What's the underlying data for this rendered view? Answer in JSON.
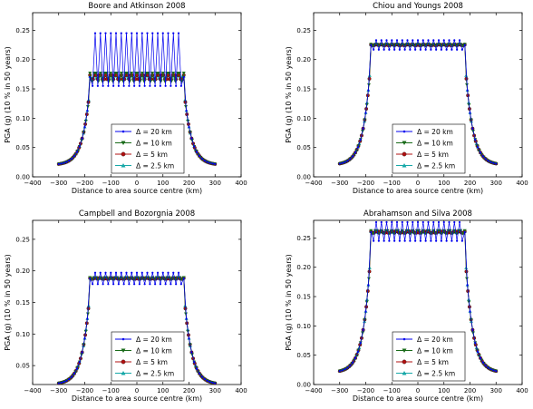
{
  "legend_labels": [
    "Δ = 20 km",
    "Δ = 10 km",
    "Δ = 5 km",
    "Δ = 2.5 km"
  ],
  "series_colors": [
    "#0000ee",
    "#1a6b1a",
    "#b01010",
    "#17a8a8"
  ],
  "series_markers": [
    "dot",
    "triangle-down",
    "circle",
    "triangle-up"
  ],
  "chart_data": [
    {
      "type": "line",
      "title": "Boore and Atkinson 2008",
      "xlabel": "Distance to area source centre (km)",
      "ylabel": "PGA (g) (10 % in 50 years)",
      "xlim": [
        -400,
        400
      ],
      "ylim": [
        0,
        0.28
      ],
      "xticks": [
        "−400",
        "−300",
        "−200",
        "−100",
        "0",
        "100",
        "200",
        "300",
        "400"
      ],
      "yticks": [
        "0.00",
        "0.05",
        "0.10",
        "0.15",
        "0.20",
        "0.25"
      ],
      "plateau": 0.17,
      "osc_high": 0.245,
      "osc_low": 0.155,
      "legend_position": "lower-center",
      "grid": false
    },
    {
      "type": "line",
      "title": "Chiou and Youngs 2008",
      "xlabel": "Distance to area source centre (km)",
      "ylabel": "PGA (g) (10 % in 50 years)",
      "xlim": [
        -400,
        400
      ],
      "ylim": [
        0,
        0.28
      ],
      "xticks": [
        "−400",
        "−300",
        "−200",
        "−100",
        "0",
        "100",
        "200",
        "300",
        "400"
      ],
      "yticks": [
        "0.00",
        "0.05",
        "0.10",
        "0.15",
        "0.20",
        "0.25"
      ],
      "plateau": 0.225,
      "osc_high": 0.233,
      "osc_low": 0.217,
      "legend_position": "lower-center",
      "grid": false
    },
    {
      "type": "line",
      "title": "Campbell and Bozorgnia 2008",
      "xlabel": "Distance to area source centre (km)",
      "ylabel": "PGA (g) (10 % in 50 years)",
      "xlim": [
        -400,
        400
      ],
      "ylim": [
        0.02,
        0.28
      ],
      "xticks": [
        "−400",
        "−300",
        "−200",
        "−100",
        "0",
        "100",
        "200",
        "300",
        "400"
      ],
      "yticks": [
        "0.05",
        "0.10",
        "0.15",
        "0.20",
        "0.25"
      ],
      "plateau": 0.188,
      "osc_high": 0.197,
      "osc_low": 0.179,
      "legend_position": "lower-center",
      "grid": false
    },
    {
      "type": "line",
      "title": "Abrahamson and Silva 2008",
      "xlabel": "Distance to area source centre (km)",
      "ylabel": "PGA (g) (10 % in 50 years)",
      "xlim": [
        -400,
        400
      ],
      "ylim": [
        0,
        0.28
      ],
      "xticks": [
        "−400",
        "−300",
        "−200",
        "−100",
        "0",
        "100",
        "200",
        "300",
        "400"
      ],
      "yticks": [
        "0.00",
        "0.05",
        "0.10",
        "0.15",
        "0.20",
        "0.25"
      ],
      "plateau": 0.26,
      "osc_high": 0.277,
      "osc_low": 0.245,
      "legend_position": "lower-center",
      "grid": false
    }
  ]
}
